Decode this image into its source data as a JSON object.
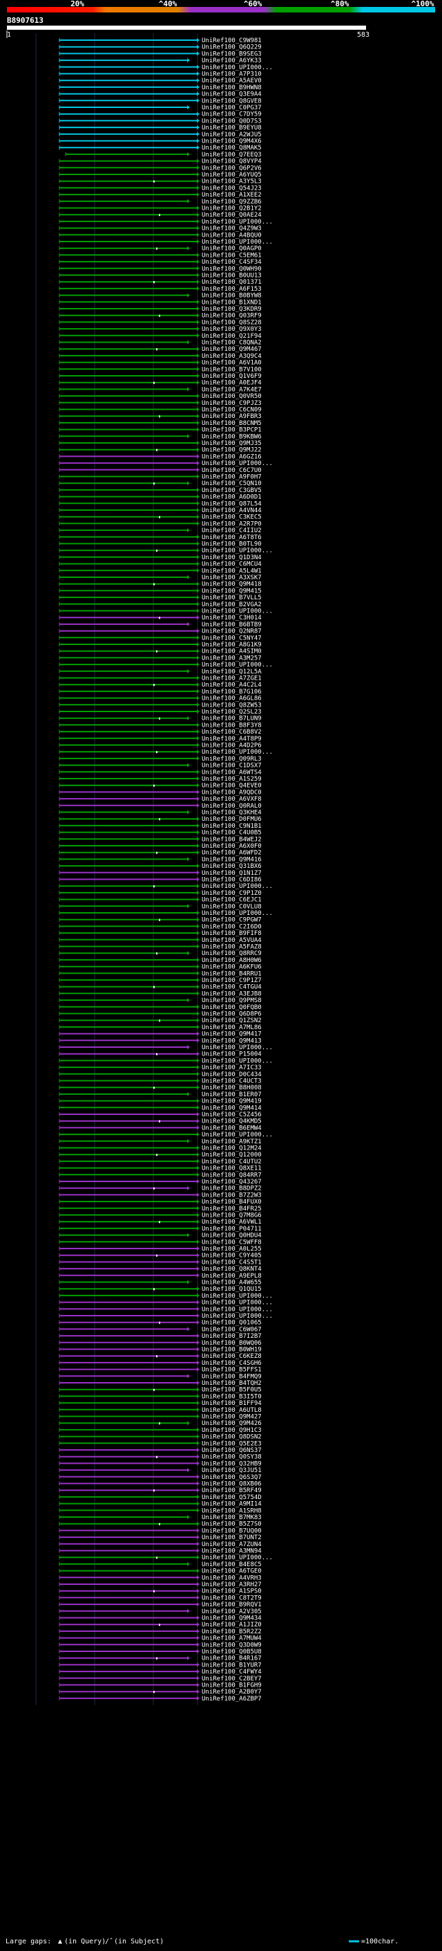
{
  "chart_data": {
    "type": "alignment-overview",
    "query_id": "B8907613",
    "ruler": {
      "start": "1",
      "end": "583"
    },
    "color_scale": {
      "labels": [
        "20%",
        "^40%",
        "^60%",
        "^80%",
        "^100%"
      ],
      "colors": [
        "#ff0000",
        "#f07800",
        "#9b30c8",
        "#00a000",
        "#00c8e6"
      ]
    },
    "legend": {
      "large_gaps": "Large gaps:",
      "in_query": "(in Query)",
      "in_subject": "(in Subject)",
      "scale_note": "=100char."
    },
    "hits": [
      "UniRef100_C9W981",
      "UniRef100_Q6Q229",
      "UniRef100_B9SEG3",
      "UniRef100_A6YK33",
      "UniRef100_UPI000...",
      "UniRef100_A7P310",
      "UniRef100_A5AEV0",
      "UniRef100_B9HWN8",
      "UniRef100_Q3E9A4",
      "UniRef100_Q8GVE8",
      "UniRef100_C0PG37",
      "UniRef100_C7DY59",
      "UniRef100_Q0D7S3",
      "UniRef100_B9EYU8",
      "UniRef100_A2WJU5",
      "UniRef100_Q9M4X6",
      "UniRef100_Q8MAK5",
      "UniRef100_Q7EEQ3",
      "UniRef100_Q8VYP4",
      "UniRef100_Q6P2V6",
      "UniRef100_A6YUQ5",
      "UniRef100_A3Y5L3",
      "UniRef100_Q54J23",
      "UniRef100_A1XEE2",
      "UniRef100_Q9ZZB6",
      "UniRef100_Q2B1Y2",
      "UniRef100_Q0AE24",
      "UniRef100_UPI000...",
      "UniRef100_Q4Z9W3",
      "UniRef100_A4BQU0",
      "UniRef100_UPI000...",
      "UniRef100_Q0AGP0",
      "UniRef100_C5EM61",
      "UniRef100_C4SF34",
      "UniRef100_Q0WH90",
      "UniRef100_B0UU13",
      "UniRef100_Q01371",
      "UniRef100_A6F153",
      "UniRef100_B0BYW8",
      "UniRef100_B1XND1",
      "UniRef100_Q3KDR9",
      "UniRef100_Q03RF9",
      "UniRef100_Q8SZ28",
      "UniRef100_Q9X0Y3",
      "UniRef100_Q21F94",
      "UniRef100_C8QNA2",
      "UniRef100_Q9M467",
      "UniRef100_A3Q9C4",
      "UniRef100_A6V1A0",
      "UniRef100_B7V100",
      "UniRef100_Q1V6F9",
      "UniRef100_A0EJF4",
      "UniRef100_A7K4E7",
      "UniRef100_Q0VR50",
      "UniRef100_C9PJZ3",
      "UniRef100_C6CN09",
      "UniRef100_A9FBR3",
      "UniRef100_B8CNM5",
      "UniRef100_B3PCP1",
      "UniRef100_B9KBW6",
      "UniRef100_Q9MJ35",
      "UniRef100_Q9MJ22",
      "UniRef100_A6GZ16",
      "UniRef100_UPI000...",
      "UniRef100_C6C7U0",
      "UniRef100_A9F0H7",
      "UniRef100_C5QN10",
      "UniRef100_C3GBV5",
      "UniRef100_A6D0D1",
      "UniRef100_Q87L54",
      "UniRef100_A4VN44",
      "UniRef100_C3KEC5",
      "UniRef100_A2R7P0",
      "UniRef100_C4IIU2",
      "UniRef100_A6T8T6",
      "UniRef100_B0TL90",
      "UniRef100_UPI000...",
      "UniRef100_Q1D3N4",
      "UniRef100_C6MCU4",
      "UniRef100_A5L4W1",
      "UniRef100_A3XSK7",
      "UniRef100_Q9M418",
      "UniRef100_Q9M415",
      "UniRef100_B7VLL5",
      "UniRef100_B2VGA2",
      "UniRef100_UPI000...",
      "UniRef100_C3H014",
      "UniRef100_B6BTB9",
      "UniRef100_Q2NR87",
      "UniRef100_C5NY47",
      "UniRef100_A8G1K9",
      "UniRef100_A4SIM0",
      "UniRef100_A3M257",
      "UniRef100_UPI000...",
      "UniRef100_Q12L5A",
      "UniRef100_A7ZGE1",
      "UniRef100_A4C2L4",
      "UniRef100_B7G106",
      "UniRef100_A6GL86",
      "UniRef100_Q8ZW53",
      "UniRef100_Q2SL23",
      "UniRef100_B7LUN9",
      "UniRef100_B8F3Y8",
      "UniRef100_C6B8V2",
      "UniRef100_A4T8P9",
      "UniRef100_A4D2P6",
      "UniRef100_UPI000...",
      "UniRef100_Q09RL3",
      "UniRef100_C1DSX7",
      "UniRef100_A6WTS4",
      "UniRef100_A1S259",
      "UniRef100_Q4EVE0",
      "UniRef100_A9QDC0",
      "UniRef100_A6VXF8",
      "UniRef100_Q0RAL0",
      "UniRef100_Q3KHE4",
      "UniRef100_D0FMU6",
      "UniRef100_C9N1B1",
      "UniRef100_C4U0B5",
      "UniRef100_B4WEJ2",
      "UniRef100_A6X0F0",
      "UniRef100_A6WFD2",
      "UniRef100_Q9M416",
      "UniRef100_Q31BX6",
      "UniRef100_Q1N1Z7",
      "UniRef100_C6DI86",
      "UniRef100_UPI000...",
      "UniRef100_C9P1Z0",
      "UniRef100_C6EJC1",
      "UniRef100_C0VLU8",
      "UniRef100_UPI000...",
      "UniRef100_C9PGW7",
      "UniRef100_C2I6D0",
      "UniRef100_B9FIF8",
      "UniRef100_A5VUA4",
      "UniRef100_A5FAZ8",
      "UniRef100_Q8RRC9",
      "UniRef100_A8H0W6",
      "UniRef100_A6KFU6",
      "UniRef100_B4RRU1",
      "UniRef100_C9P1Z7",
      "UniRef100_C4TGU4",
      "UniRef100_A3EJB8",
      "UniRef100_Q9PMS8",
      "UniRef100_Q0FQB0",
      "UniRef100_Q6D8P6",
      "UniRef100_Q1ZSN2",
      "UniRef100_A7ML86",
      "UniRef100_Q9M417",
      "UniRef100_Q9M413",
      "UniRef100_UPI000...",
      "UniRef100_P15004",
      "UniRef100_UPI000...",
      "UniRef100_A7IC33",
      "UniRef100_D0C434",
      "UniRef100_C4UCT3",
      "UniRef100_B8H008",
      "UniRef100_B1ER07",
      "UniRef100_Q9M419",
      "UniRef100_Q9M414",
      "UniRef100_C5Z456",
      "UniRef100_Q4KMD5",
      "UniRef100_B6EMW4",
      "UniRef100_UPI000...",
      "UniRef100_A9KTZ1",
      "UniRef100_Q12M24",
      "UniRef100_Q12000",
      "UniRef100_C4UTU2",
      "UniRef100_Q8XE11",
      "UniRef100_Q84RR7",
      "UniRef100_Q43267",
      "UniRef100_B8DPZ2",
      "UniRef100_B7Z2W3",
      "UniRef100_B4FUX0",
      "UniRef100_B4FR25",
      "UniRef100_Q7M8G6",
      "UniRef100_A6VWL1",
      "UniRef100_P04711",
      "UniRef100_Q0HDU4",
      "UniRef100_C5WFF8",
      "UniRef100_A0L255",
      "UniRef100_C9Y405",
      "UniRef100_C4S5T1",
      "UniRef100_Q8KNT4",
      "UniRef100_A9EPL8",
      "UniRef100_A4W655",
      "UniRef100_Q1QU15",
      "UniRef100_UPI000...",
      "UniRef100_UPI000...",
      "UniRef100_UPI000...",
      "UniRef100_UPI000...",
      "UniRef100_Q01065",
      "UniRef100_C6W067",
      "UniRef100_B7I2B7",
      "UniRef100_B0WQ06",
      "UniRef100_B0WH19",
      "UniRef100_C6KEZ8",
      "UniRef100_C4SGH6",
      "UniRef100_B5FFS1",
      "UniRef100_B4FMQ9",
      "UniRef100_B4TQH2",
      "UniRef100_B5F0U5",
      "UniRef100_B3I5T0",
      "UniRef100_B1FF94",
      "UniRef100_A6UTL8",
      "UniRef100_Q9M427",
      "UniRef100_Q9M426",
      "UniRef100_Q9H1C3",
      "UniRef100_Q8DSN2",
      "UniRef100_Q5E2E3",
      "UniRef100_Q6NS37",
      "UniRef100_Q0SY38",
      "UniRef100_Q32HB9",
      "UniRef100_Q3JU51",
      "UniRef100_Q6S3Q7",
      "UniRef100_Q8XB06",
      "UniRef100_B5RF49",
      "UniRef100_Q5754D",
      "UniRef100_A9MI14",
      "UniRef100_A1SRH8",
      "UniRef100_B7MK83",
      "UniRef100_B5Z7S0",
      "UniRef100_B7UQ00",
      "UniRef100_B7UNT2",
      "UniRef100_A7ZUN4",
      "UniRef100_A3MN94",
      "UniRef100_UPI000...",
      "UniRef100_B4E8C5",
      "UniRef100_A6TGE0",
      "UniRef100_A4VRH3",
      "UniRef100_A3RH27",
      "UniRef100_A1SPS0",
      "UniRef100_C8T2T9",
      "UniRef100_B9RQV1",
      "UniRef100_A2V305",
      "UniRef100_Q9M434",
      "UniRef100_A1JIZ0",
      "UniRef100_B5R2Z2",
      "UniRef100_A7MUW4",
      "UniRef100_Q3D0W9",
      "UniRef100_Q0B5U8",
      "UniRef100_B4R167",
      "UniRef100_B1YUR7",
      "UniRef100_C4FWY4",
      "UniRef100_C2BEY7",
      "UniRef100_B1FGH9",
      "UniRef100_A2B0Y7",
      "UniRef100_A6ZBP7"
    ]
  }
}
